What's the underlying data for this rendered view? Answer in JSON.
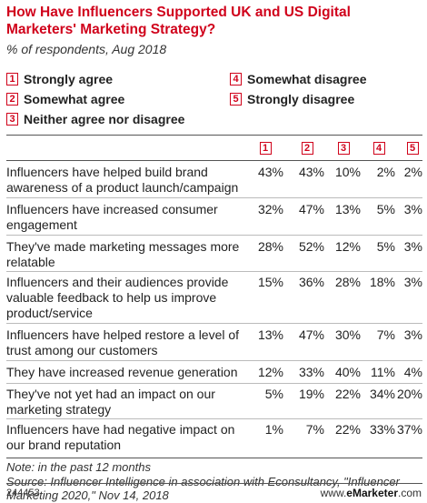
{
  "header": {
    "title": "How Have Influencers Supported UK and US Digital Marketers' Marketing Strategy?",
    "subtitle": "% of respondents, Aug 2018"
  },
  "legend": [
    {
      "key": "1",
      "label": "Strongly agree"
    },
    {
      "key": "2",
      "label": "Somewhat agree"
    },
    {
      "key": "3",
      "label": "Neither agree nor disagree"
    },
    {
      "key": "4",
      "label": "Somewhat disagree"
    },
    {
      "key": "5",
      "label": "Strongly disagree"
    }
  ],
  "colors": {
    "accent": "#d0021b",
    "text": "#222222",
    "rule": "#555555",
    "divider": "#bbbbbb"
  },
  "chart_data": {
    "type": "table",
    "columns": [
      "1",
      "2",
      "3",
      "4",
      "5"
    ],
    "rows": [
      {
        "label": "Influencers have helped build brand awareness of a product launch/campaign",
        "values": [
          "43%",
          "43%",
          "10%",
          "2%",
          "2%"
        ]
      },
      {
        "label": "Influencers have increased consumer engagement",
        "values": [
          "32%",
          "47%",
          "13%",
          "5%",
          "3%"
        ]
      },
      {
        "label": "They've made marketing messages more relatable",
        "values": [
          "28%",
          "52%",
          "12%",
          "5%",
          "3%"
        ]
      },
      {
        "label": "Influencers and their audiences provide valuable feedback to help us improve product/service",
        "values": [
          "15%",
          "36%",
          "28%",
          "18%",
          "3%"
        ]
      },
      {
        "label": "Influencers have helped restore a level of trust among our customers",
        "values": [
          "13%",
          "47%",
          "30%",
          "7%",
          "3%"
        ]
      },
      {
        "label": "They have increased revenue generation",
        "values": [
          "12%",
          "33%",
          "40%",
          "11%",
          "4%"
        ]
      },
      {
        "label": "They've not yet had an impact on our marketing strategy",
        "values": [
          "5%",
          "19%",
          "22%",
          "34%",
          "20%"
        ]
      },
      {
        "label": "Influencers have had negative impact on our brand reputation",
        "values": [
          "1%",
          "7%",
          "22%",
          "33%",
          "37%"
        ]
      }
    ]
  },
  "notes": {
    "note": "Note: in the past 12 months",
    "source": "Source: Influencer Intelligence in association with Econsultancy, \"Influencer Marketing 2020,\" Nov 14, 2018"
  },
  "footer": {
    "id": "244453",
    "brand_prefix": "www.",
    "brand_main": "eMarketer",
    "brand_suffix": ".com"
  }
}
